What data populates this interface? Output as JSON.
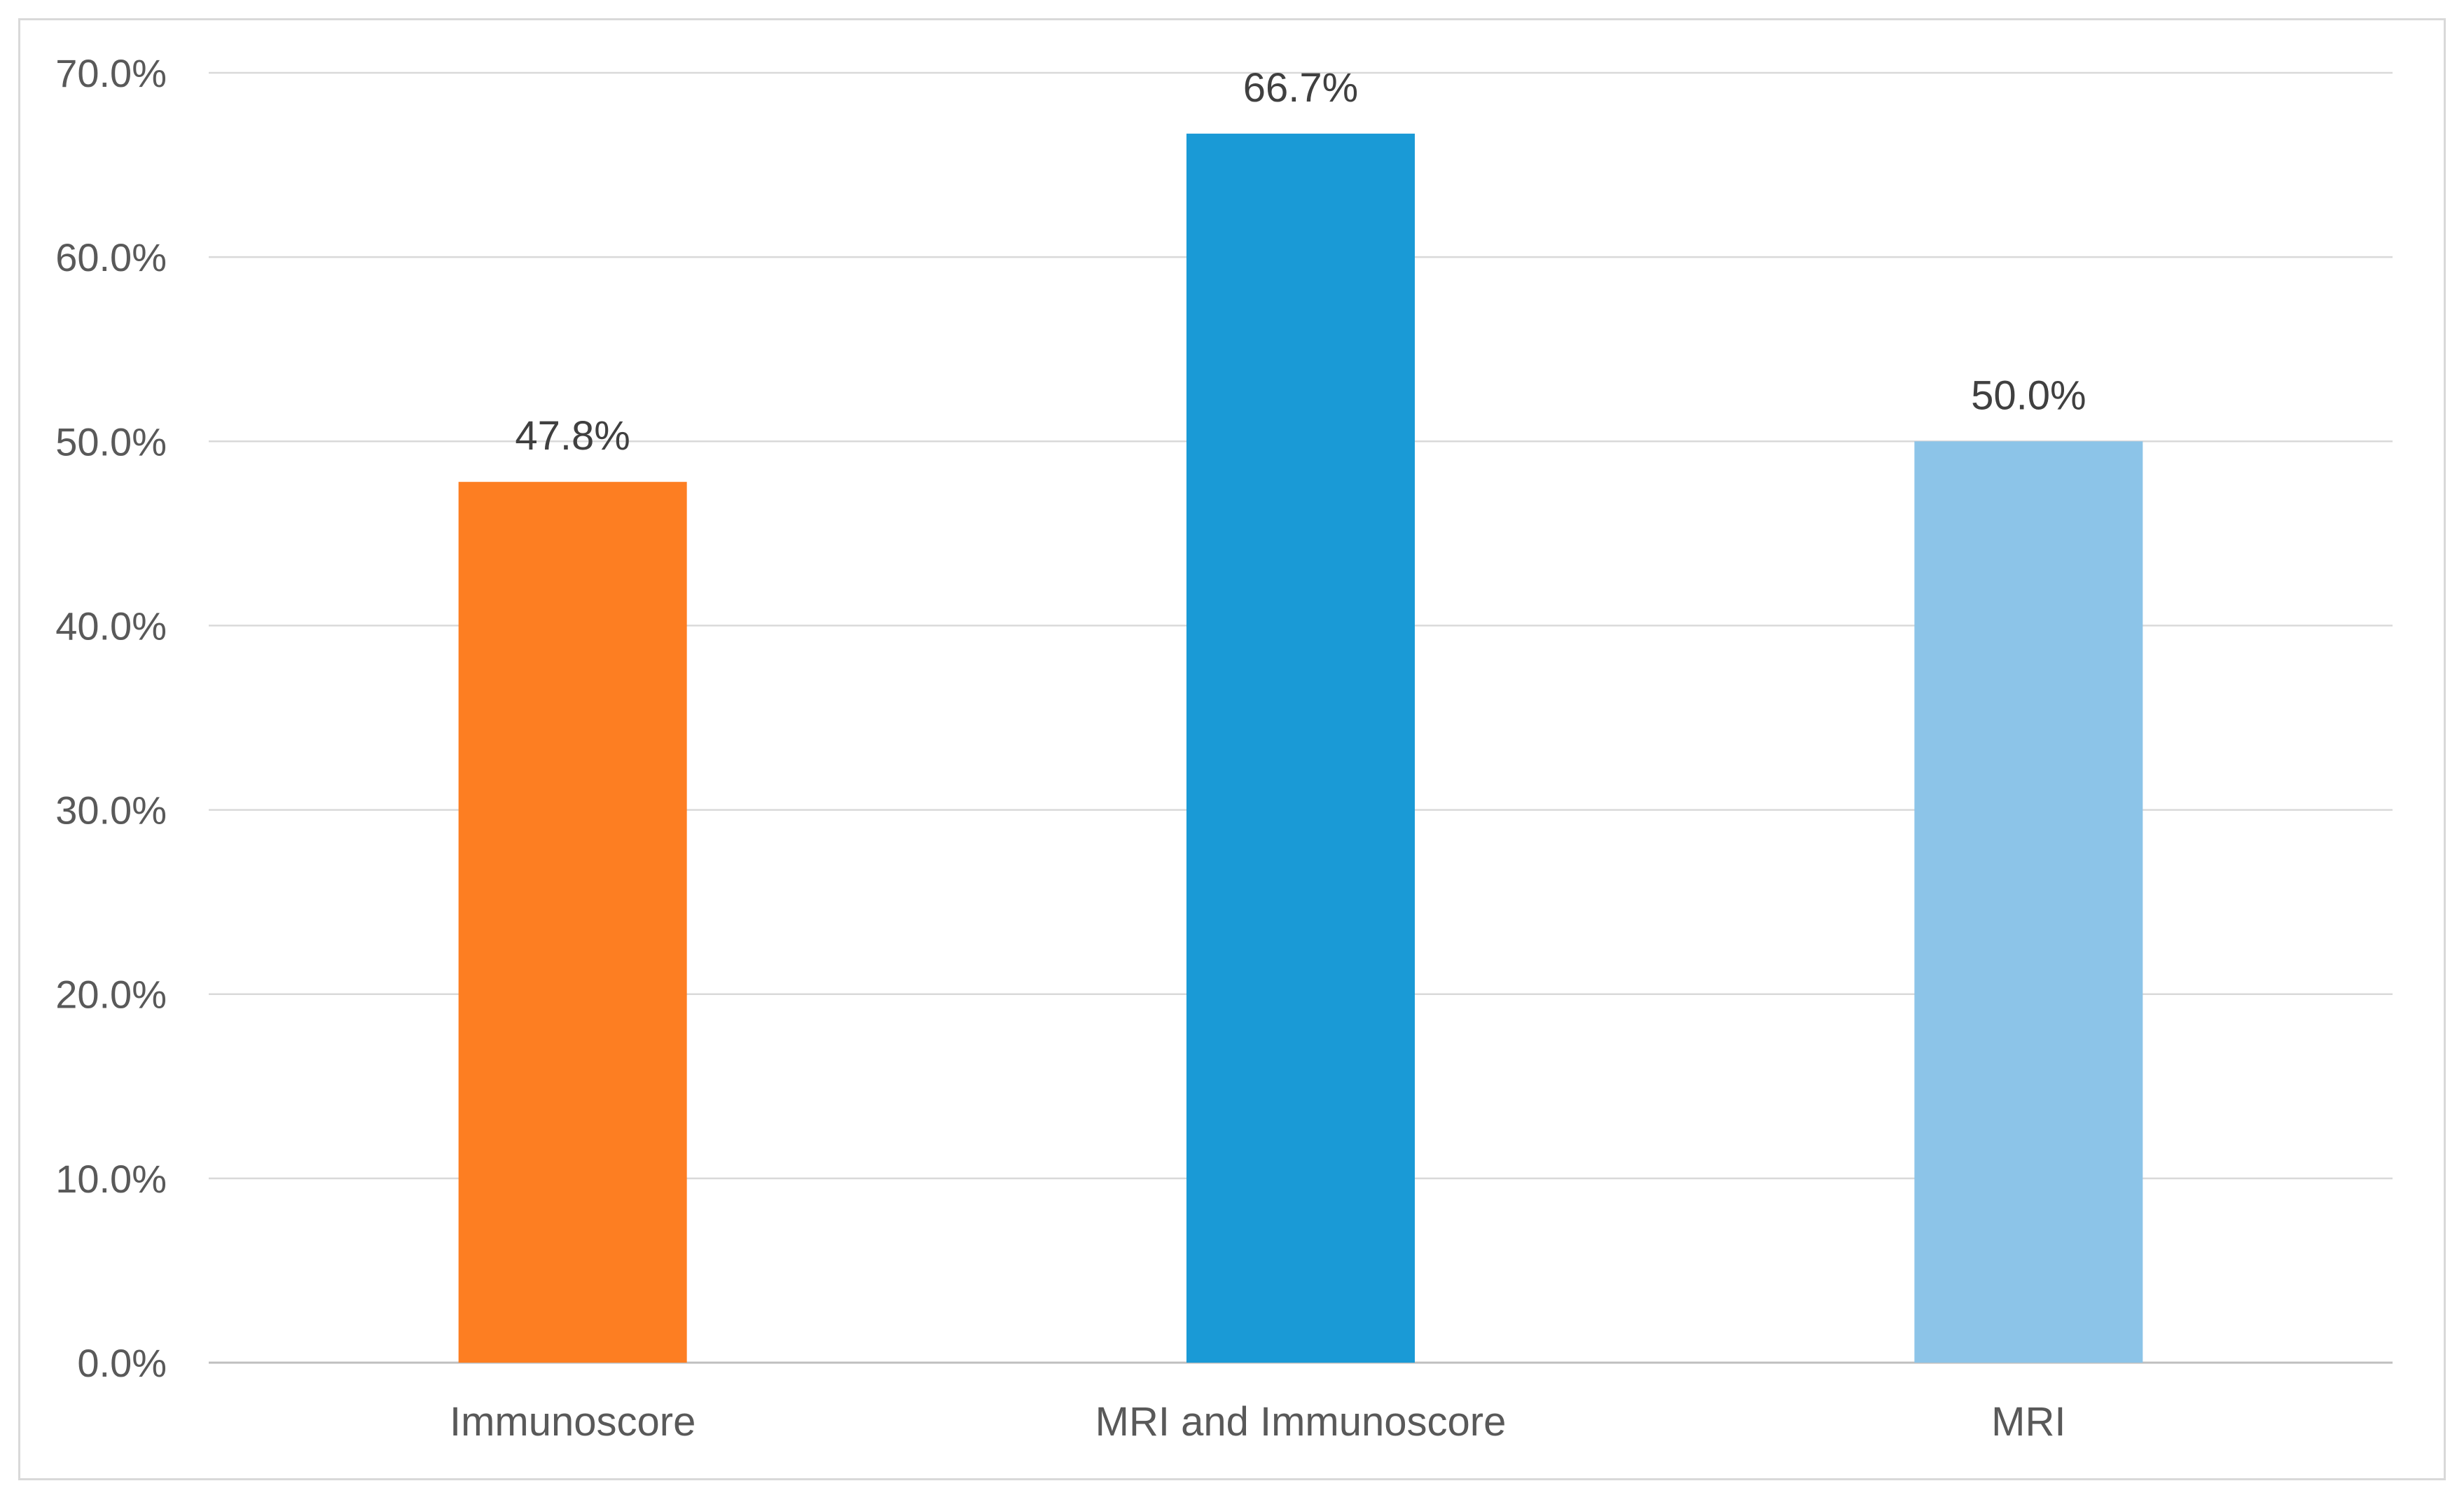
{
  "chart_data": {
    "type": "bar",
    "title": "",
    "xlabel": "",
    "ylabel": "",
    "categories": [
      "Immunoscore",
      "MRI and Immunoscore",
      "MRI"
    ],
    "values": [
      47.8,
      66.7,
      50.0
    ],
    "data_labels": [
      "47.8%",
      "66.7%",
      "50.0%"
    ],
    "colors": [
      "#fd7e22",
      "#1a9ad6",
      "#8cc4e8"
    ],
    "ylim": [
      0,
      70
    ],
    "yticks": [
      0,
      10,
      20,
      30,
      40,
      50,
      60,
      70
    ],
    "ytick_labels": [
      "0.0%",
      "10.0%",
      "20.0%",
      "30.0%",
      "40.0%",
      "50.0%",
      "60.0%",
      "70.0%"
    ],
    "grid": true,
    "legend": "none"
  }
}
